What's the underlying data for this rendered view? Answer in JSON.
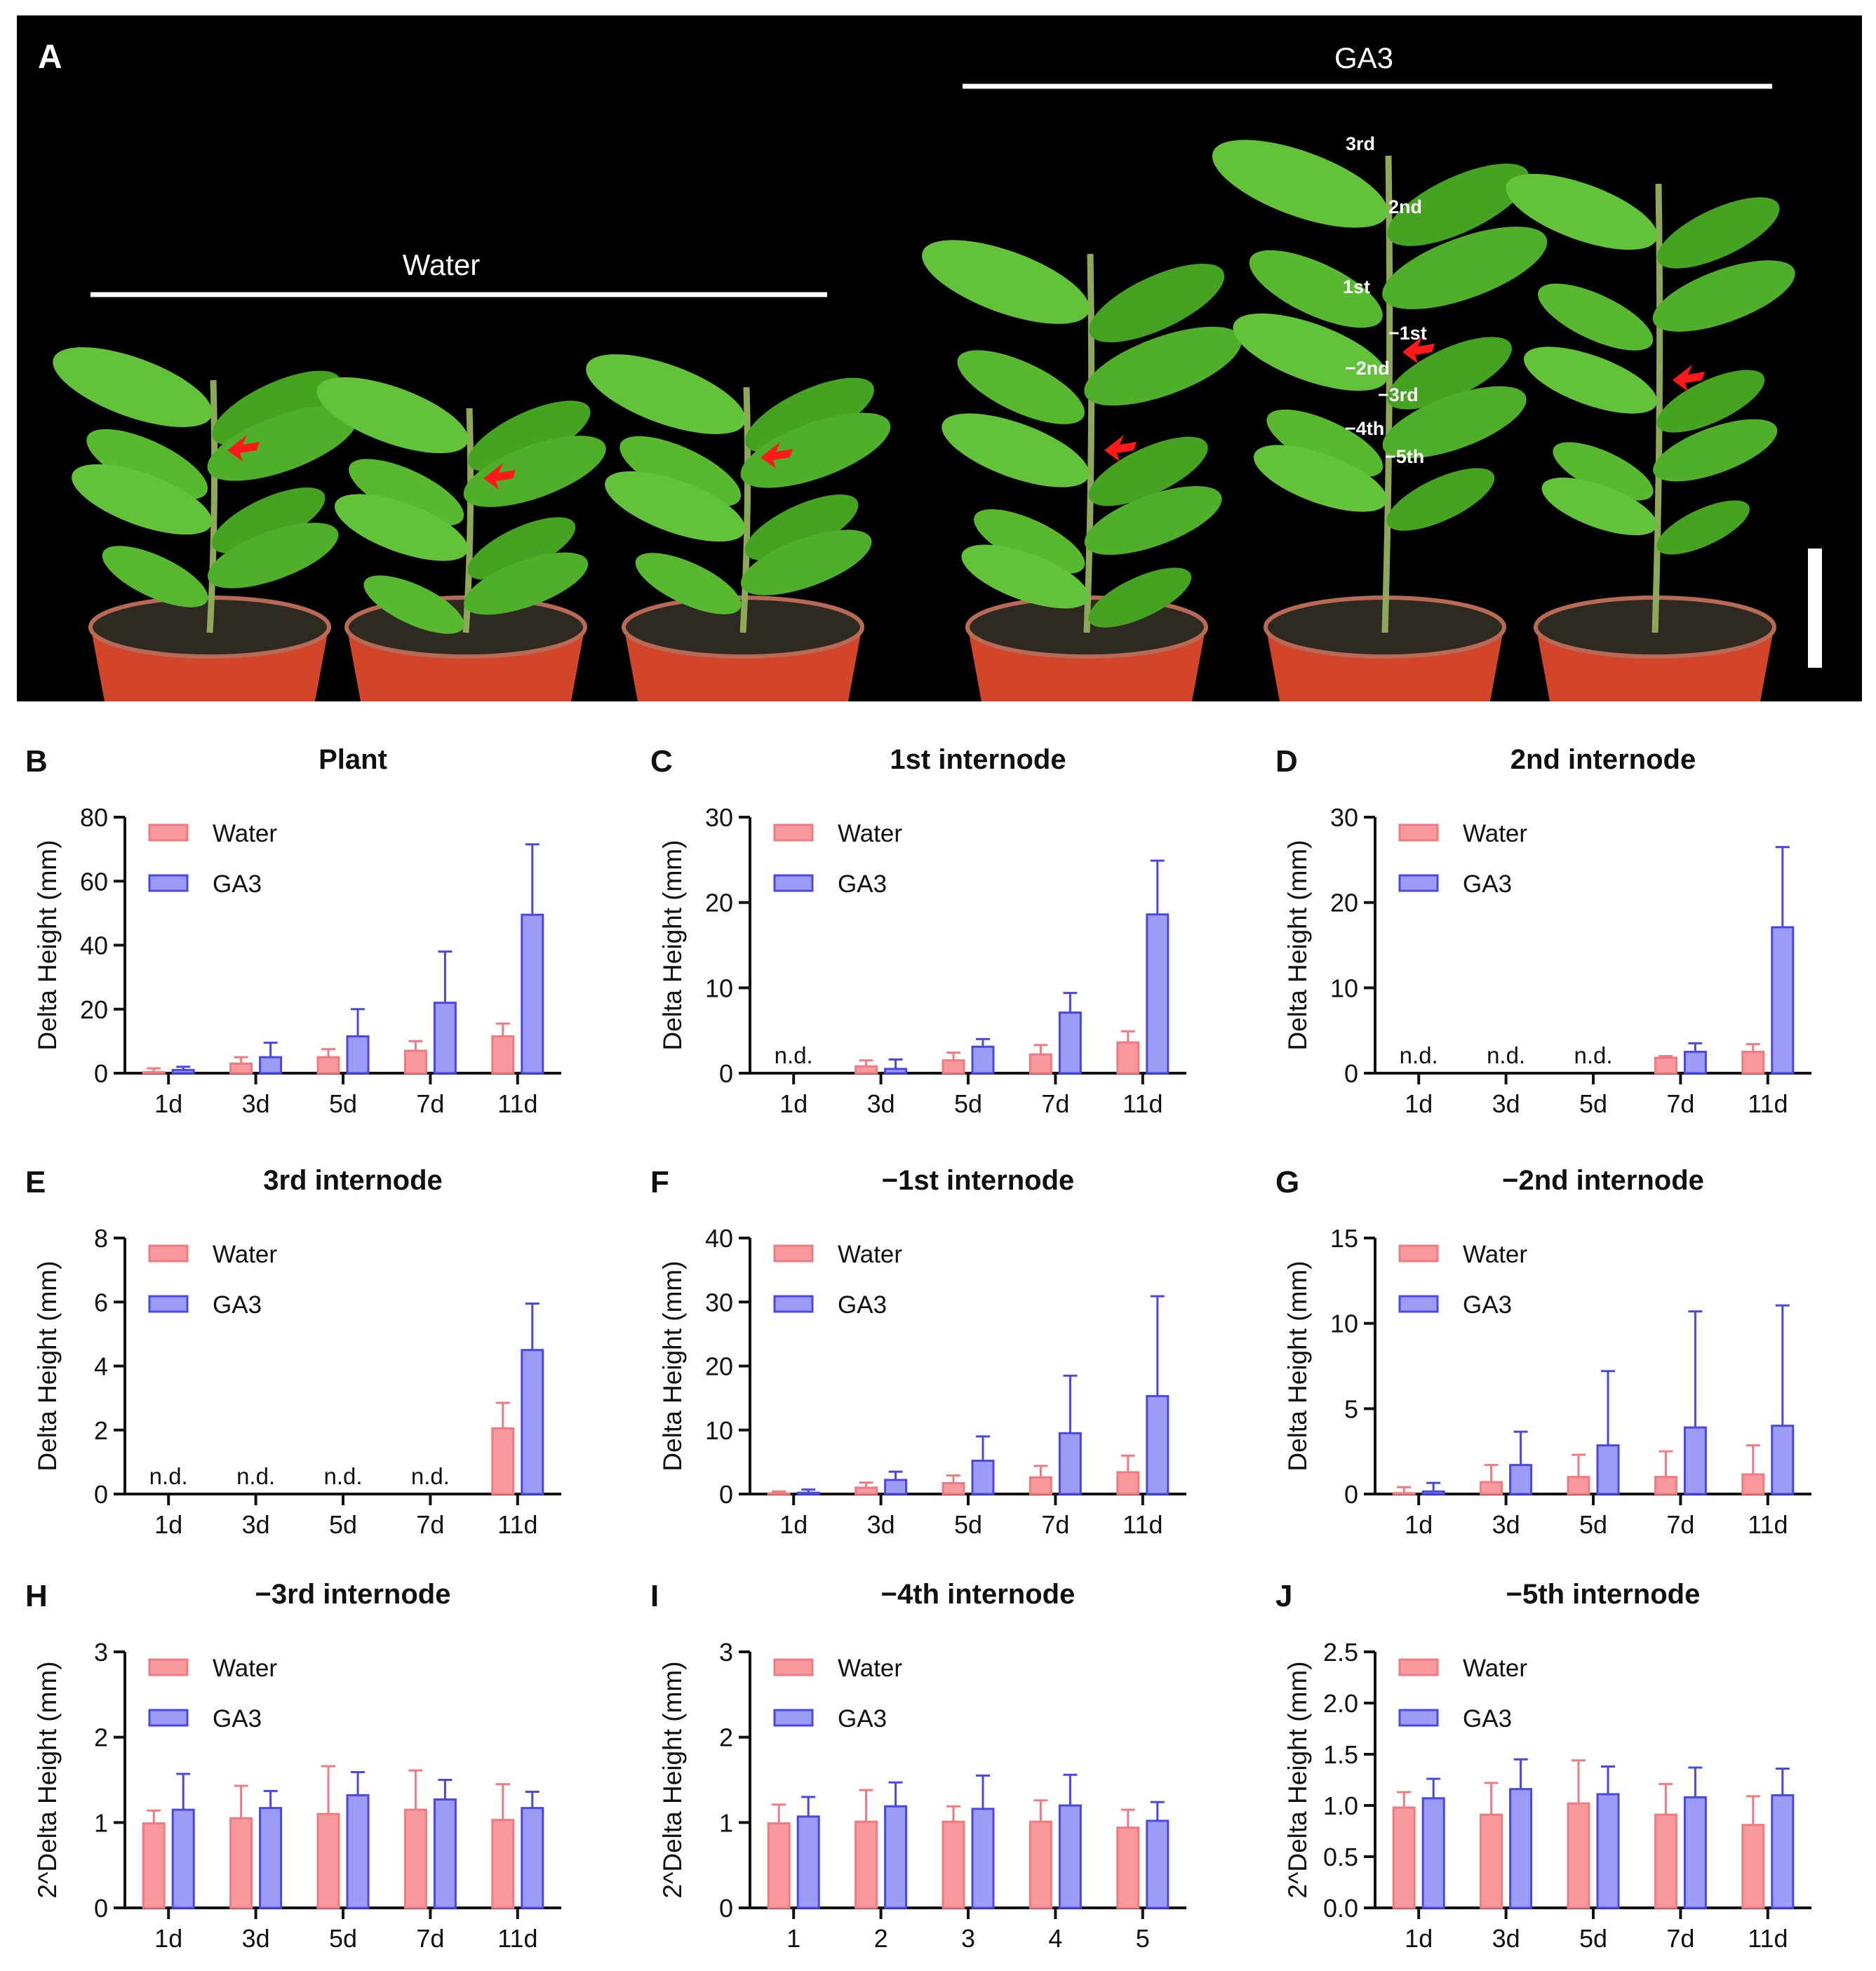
{
  "figure": {
    "panel_a": {
      "letter": "A",
      "water_label": "Water",
      "ga3_label": "GA3",
      "internode_labels": [
        "3rd",
        "2nd",
        "1st",
        "−1st",
        "−2nd",
        "−3rd",
        "−4th",
        "−5th"
      ]
    }
  },
  "colors": {
    "water": "#f6868c",
    "water_fill": "#f8999e",
    "ga3": "#5b5bf0",
    "ga3_fill": "#9c9cf7",
    "water_edge": "#f07a80",
    "ga3_edge": "#4848e6"
  },
  "chart_data": [
    {
      "panel": "B",
      "title": "Plant",
      "type": "bar",
      "ylabel": "Delta Height (mm)",
      "ylim": [
        0,
        80
      ],
      "yticks": [
        "0",
        "20",
        "40",
        "60",
        "80"
      ],
      "categories": [
        "1d",
        "3d",
        "5d",
        "7d",
        "11d"
      ],
      "series": [
        {
          "name": "Water",
          "values": [
            0.3,
            3,
            5,
            7,
            11.5
          ],
          "errors": [
            1.2,
            2,
            2.5,
            3,
            4
          ]
        },
        {
          "name": "GA3",
          "values": [
            1,
            5,
            11.5,
            22,
            49.5
          ],
          "errors": [
            1,
            4.5,
            8.5,
            16,
            22
          ]
        }
      ],
      "annotations": []
    },
    {
      "panel": "C",
      "title": "1st internode",
      "type": "bar",
      "ylabel": "Delta Height (mm)",
      "ylim": [
        0,
        30
      ],
      "yticks": [
        "0",
        "10",
        "20",
        "30"
      ],
      "categories": [
        "1d",
        "3d",
        "5d",
        "7d",
        "11d"
      ],
      "series": [
        {
          "name": "Water",
          "values": [
            null,
            0.8,
            1.5,
            2.2,
            3.6
          ],
          "errors": [
            0,
            0.7,
            0.9,
            1.1,
            1.3
          ]
        },
        {
          "name": "GA3",
          "values": [
            null,
            0.5,
            3.1,
            7.1,
            18.6
          ],
          "errors": [
            0,
            1.1,
            0.9,
            2.3,
            6.3
          ]
        }
      ],
      "annotations": [
        {
          "text": "n.d.",
          "category_index": 0
        }
      ]
    },
    {
      "panel": "D",
      "title": "2nd internode",
      "type": "bar",
      "ylabel": "Delta Height (mm)",
      "ylim": [
        0,
        30
      ],
      "yticks": [
        "0",
        "10",
        "20",
        "30"
      ],
      "categories": [
        "1d",
        "3d",
        "5d",
        "7d",
        "11d"
      ],
      "series": [
        {
          "name": "Water",
          "values": [
            null,
            null,
            null,
            1.8,
            2.5
          ],
          "errors": [
            0,
            0,
            0,
            0.2,
            0.9
          ]
        },
        {
          "name": "GA3",
          "values": [
            null,
            null,
            null,
            2.5,
            17.1
          ],
          "errors": [
            0,
            0,
            0,
            1,
            9.4
          ]
        }
      ],
      "annotations": [
        {
          "text": "n.d.",
          "category_index": 0
        },
        {
          "text": "n.d.",
          "category_index": 1
        },
        {
          "text": "n.d.",
          "category_index": 2
        }
      ]
    },
    {
      "panel": "E",
      "title": "3rd internode",
      "type": "bar",
      "ylabel": "Delta Height (mm)",
      "ylim": [
        0,
        8
      ],
      "yticks": [
        "0",
        "2",
        "4",
        "6",
        "8"
      ],
      "categories": [
        "1d",
        "3d",
        "5d",
        "7d",
        "11d"
      ],
      "series": [
        {
          "name": "Water",
          "values": [
            null,
            null,
            null,
            null,
            2.05
          ],
          "errors": [
            0,
            0,
            0,
            0,
            0.8
          ]
        },
        {
          "name": "GA3",
          "values": [
            null,
            null,
            null,
            null,
            4.5
          ],
          "errors": [
            0,
            0,
            0,
            0,
            1.45
          ]
        }
      ],
      "annotations": [
        {
          "text": "n.d.",
          "category_index": 0
        },
        {
          "text": "n.d.",
          "category_index": 1
        },
        {
          "text": "n.d.",
          "category_index": 2
        },
        {
          "text": "n.d.",
          "category_index": 3
        }
      ]
    },
    {
      "panel": "F",
      "title": "−1st internode",
      "type": "bar",
      "ylabel": "Delta Height (mm)",
      "ylim": [
        0,
        40
      ],
      "yticks": [
        "0",
        "10",
        "20",
        "30",
        "40"
      ],
      "categories": [
        "1d",
        "3d",
        "5d",
        "7d",
        "11d"
      ],
      "series": [
        {
          "name": "Water",
          "values": [
            0.1,
            1,
            1.7,
            2.6,
            3.4
          ],
          "errors": [
            0.3,
            0.8,
            1.2,
            1.8,
            2.6
          ]
        },
        {
          "name": "GA3",
          "values": [
            0.2,
            2.2,
            5.2,
            9.5,
            15.3
          ],
          "errors": [
            0.5,
            1.3,
            3.8,
            9,
            15.6
          ]
        }
      ],
      "annotations": []
    },
    {
      "panel": "G",
      "title": "−2nd internode",
      "type": "bar",
      "ylabel": "Delta Height (mm)",
      "ylim": [
        0,
        15
      ],
      "yticks": [
        "0",
        "5",
        "10",
        "15"
      ],
      "categories": [
        "1d",
        "3d",
        "5d",
        "7d",
        "11d"
      ],
      "series": [
        {
          "name": "Water",
          "values": [
            0.05,
            0.7,
            1,
            1,
            1.15
          ],
          "errors": [
            0.35,
            1,
            1.3,
            1.5,
            1.7
          ]
        },
        {
          "name": "GA3",
          "values": [
            0.15,
            1.7,
            2.85,
            3.9,
            4
          ],
          "errors": [
            0.5,
            1.95,
            4.35,
            6.8,
            7.05
          ]
        }
      ],
      "annotations": []
    },
    {
      "panel": "H",
      "title": "−3rd internode",
      "type": "bar",
      "ylabel": "2^Delta Height (mm)",
      "ylim": [
        0,
        3
      ],
      "yticks": [
        "0",
        "1",
        "2",
        "3"
      ],
      "categories": [
        "1d",
        "3d",
        "5d",
        "7d",
        "11d"
      ],
      "series": [
        {
          "name": "Water",
          "values": [
            0.99,
            1.05,
            1.1,
            1.15,
            1.03
          ],
          "errors": [
            0.15,
            0.38,
            0.56,
            0.46,
            0.42
          ]
        },
        {
          "name": "GA3",
          "values": [
            1.15,
            1.17,
            1.32,
            1.27,
            1.17
          ],
          "errors": [
            0.42,
            0.2,
            0.27,
            0.23,
            0.19
          ]
        }
      ],
      "annotations": []
    },
    {
      "panel": "I",
      "title": "−4th internode",
      "type": "bar",
      "ylabel": "2^Delta Height (mm)",
      "ylim": [
        0,
        3
      ],
      "yticks": [
        "0",
        "1",
        "2",
        "3"
      ],
      "categories": [
        "1",
        "2",
        "3",
        "4",
        "5"
      ],
      "series": [
        {
          "name": "Water",
          "values": [
            0.99,
            1.01,
            1.01,
            1.01,
            0.94
          ],
          "errors": [
            0.22,
            0.37,
            0.18,
            0.25,
            0.21
          ]
        },
        {
          "name": "GA3",
          "values": [
            1.07,
            1.19,
            1.16,
            1.2,
            1.02
          ],
          "errors": [
            0.23,
            0.28,
            0.39,
            0.36,
            0.22
          ]
        }
      ],
      "annotations": []
    },
    {
      "panel": "J",
      "title": "−5th internode",
      "type": "bar",
      "ylabel": "2^Delta Height (mm)",
      "ylim": [
        0,
        2.5
      ],
      "yticks": [
        "0.0",
        "0.5",
        "1.0",
        "1.5",
        "2.0",
        "2.5"
      ],
      "categories": [
        "1d",
        "3d",
        "5d",
        "7d",
        "11d"
      ],
      "series": [
        {
          "name": "Water",
          "values": [
            0.98,
            0.91,
            1.02,
            0.91,
            0.81
          ],
          "errors": [
            0.15,
            0.31,
            0.42,
            0.3,
            0.28
          ]
        },
        {
          "name": "GA3",
          "values": [
            1.07,
            1.16,
            1.11,
            1.08,
            1.1
          ],
          "errors": [
            0.19,
            0.29,
            0.27,
            0.29,
            0.26
          ]
        }
      ],
      "annotations": []
    }
  ]
}
